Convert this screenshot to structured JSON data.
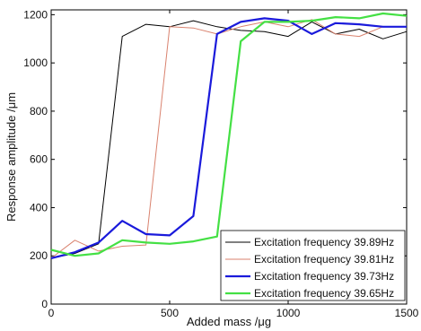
{
  "chart_data": {
    "type": "line",
    "xlabel": "Added mass /μg",
    "ylabel": "Response amplitude /μm",
    "xlim": [
      0,
      1500
    ],
    "ylim": [
      0,
      1220
    ],
    "xticks": [
      0,
      500,
      1000,
      1500
    ],
    "yticks": [
      0,
      200,
      400,
      600,
      800,
      1000,
      1200
    ],
    "grid": false,
    "legend_position": "bottom-right",
    "series": [
      {
        "name": "Excitation frequency 39.89Hz",
        "color": "#000000",
        "stroke": "thin",
        "x": [
          0,
          100,
          200,
          300,
          400,
          500,
          600,
          700,
          800,
          900,
          1000,
          1100,
          1200,
          1300,
          1400,
          1500
        ],
        "y": [
          190,
          210,
          250,
          1110,
          1160,
          1150,
          1175,
          1150,
          1135,
          1130,
          1110,
          1170,
          1120,
          1140,
          1100,
          1130
        ]
      },
      {
        "name": "Excitation frequency 39.81Hz",
        "color": "#d9826e",
        "stroke": "thin",
        "x": [
          0,
          100,
          200,
          300,
          400,
          500,
          600,
          700,
          800,
          900,
          1000,
          1100,
          1200,
          1300,
          1400,
          1500
        ],
        "y": [
          190,
          265,
          220,
          240,
          245,
          1150,
          1145,
          1120,
          1150,
          1170,
          1150,
          1180,
          1120,
          1110,
          1150,
          1150
        ]
      },
      {
        "name": "Excitation frequency 39.73Hz",
        "color": "#1a1adb",
        "stroke": "thick",
        "x": [
          0,
          100,
          200,
          300,
          400,
          500,
          600,
          700,
          800,
          900,
          1000,
          1100,
          1200,
          1300,
          1400,
          1500
        ],
        "y": [
          190,
          215,
          255,
          345,
          290,
          285,
          365,
          1120,
          1170,
          1185,
          1175,
          1120,
          1165,
          1160,
          1150,
          1150
        ]
      },
      {
        "name": "Excitation frequency 39.65Hz",
        "color": "#44e044",
        "stroke": "thick",
        "x": [
          0,
          100,
          200,
          300,
          400,
          500,
          600,
          700,
          800,
          900,
          1000,
          1100,
          1200,
          1300,
          1400,
          1500
        ],
        "y": [
          225,
          200,
          210,
          265,
          255,
          250,
          260,
          280,
          1090,
          1170,
          1170,
          1175,
          1190,
          1185,
          1205,
          1195
        ]
      }
    ]
  }
}
